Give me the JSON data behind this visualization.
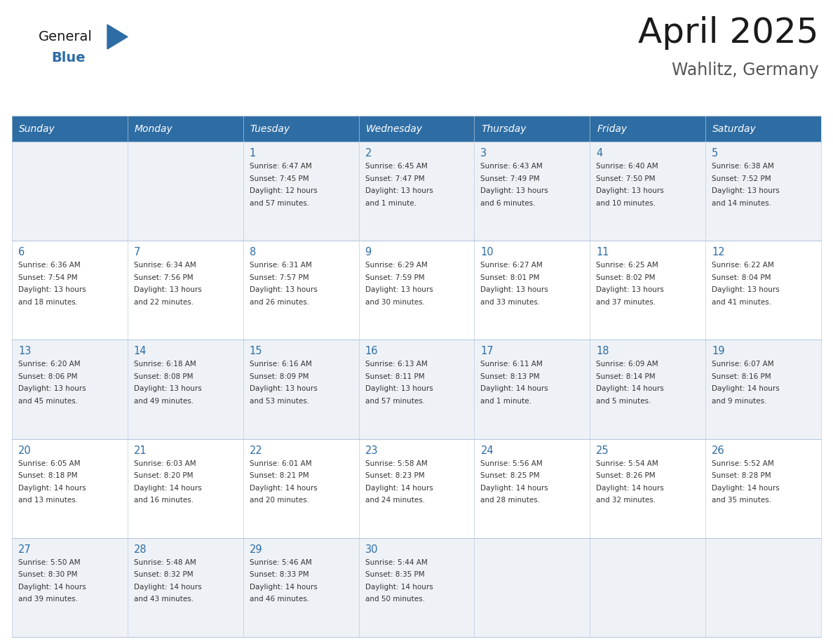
{
  "title": "April 2025",
  "subtitle": "Wahlitz, Germany",
  "header_color": "#2e6da4",
  "header_text_color": "#ffffff",
  "row_bg_even": "#eef2f7",
  "row_bg_odd": "#ffffff",
  "title_color": "#1a1a1a",
  "subtitle_color": "#555555",
  "day_number_color": "#2e6da4",
  "cell_text_color": "#333333",
  "grid_line_color": "#b8c9dc",
  "logo_general_color": "#1a1a1a",
  "logo_blue_color": "#2e6da4",
  "logo_triangle_color": "#2e6da4",
  "days_of_week": [
    "Sunday",
    "Monday",
    "Tuesday",
    "Wednesday",
    "Thursday",
    "Friday",
    "Saturday"
  ],
  "weeks": [
    [
      {
        "day": "",
        "sunrise": "",
        "sunset": "",
        "daylight": ""
      },
      {
        "day": "",
        "sunrise": "",
        "sunset": "",
        "daylight": ""
      },
      {
        "day": "1",
        "sunrise": "Sunrise: 6:47 AM",
        "sunset": "Sunset: 7:45 PM",
        "daylight": "Daylight: 12 hours\nand 57 minutes."
      },
      {
        "day": "2",
        "sunrise": "Sunrise: 6:45 AM",
        "sunset": "Sunset: 7:47 PM",
        "daylight": "Daylight: 13 hours\nand 1 minute."
      },
      {
        "day": "3",
        "sunrise": "Sunrise: 6:43 AM",
        "sunset": "Sunset: 7:49 PM",
        "daylight": "Daylight: 13 hours\nand 6 minutes."
      },
      {
        "day": "4",
        "sunrise": "Sunrise: 6:40 AM",
        "sunset": "Sunset: 7:50 PM",
        "daylight": "Daylight: 13 hours\nand 10 minutes."
      },
      {
        "day": "5",
        "sunrise": "Sunrise: 6:38 AM",
        "sunset": "Sunset: 7:52 PM",
        "daylight": "Daylight: 13 hours\nand 14 minutes."
      }
    ],
    [
      {
        "day": "6",
        "sunrise": "Sunrise: 6:36 AM",
        "sunset": "Sunset: 7:54 PM",
        "daylight": "Daylight: 13 hours\nand 18 minutes."
      },
      {
        "day": "7",
        "sunrise": "Sunrise: 6:34 AM",
        "sunset": "Sunset: 7:56 PM",
        "daylight": "Daylight: 13 hours\nand 22 minutes."
      },
      {
        "day": "8",
        "sunrise": "Sunrise: 6:31 AM",
        "sunset": "Sunset: 7:57 PM",
        "daylight": "Daylight: 13 hours\nand 26 minutes."
      },
      {
        "day": "9",
        "sunrise": "Sunrise: 6:29 AM",
        "sunset": "Sunset: 7:59 PM",
        "daylight": "Daylight: 13 hours\nand 30 minutes."
      },
      {
        "day": "10",
        "sunrise": "Sunrise: 6:27 AM",
        "sunset": "Sunset: 8:01 PM",
        "daylight": "Daylight: 13 hours\nand 33 minutes."
      },
      {
        "day": "11",
        "sunrise": "Sunrise: 6:25 AM",
        "sunset": "Sunset: 8:02 PM",
        "daylight": "Daylight: 13 hours\nand 37 minutes."
      },
      {
        "day": "12",
        "sunrise": "Sunrise: 6:22 AM",
        "sunset": "Sunset: 8:04 PM",
        "daylight": "Daylight: 13 hours\nand 41 minutes."
      }
    ],
    [
      {
        "day": "13",
        "sunrise": "Sunrise: 6:20 AM",
        "sunset": "Sunset: 8:06 PM",
        "daylight": "Daylight: 13 hours\nand 45 minutes."
      },
      {
        "day": "14",
        "sunrise": "Sunrise: 6:18 AM",
        "sunset": "Sunset: 8:08 PM",
        "daylight": "Daylight: 13 hours\nand 49 minutes."
      },
      {
        "day": "15",
        "sunrise": "Sunrise: 6:16 AM",
        "sunset": "Sunset: 8:09 PM",
        "daylight": "Daylight: 13 hours\nand 53 minutes."
      },
      {
        "day": "16",
        "sunrise": "Sunrise: 6:13 AM",
        "sunset": "Sunset: 8:11 PM",
        "daylight": "Daylight: 13 hours\nand 57 minutes."
      },
      {
        "day": "17",
        "sunrise": "Sunrise: 6:11 AM",
        "sunset": "Sunset: 8:13 PM",
        "daylight": "Daylight: 14 hours\nand 1 minute."
      },
      {
        "day": "18",
        "sunrise": "Sunrise: 6:09 AM",
        "sunset": "Sunset: 8:14 PM",
        "daylight": "Daylight: 14 hours\nand 5 minutes."
      },
      {
        "day": "19",
        "sunrise": "Sunrise: 6:07 AM",
        "sunset": "Sunset: 8:16 PM",
        "daylight": "Daylight: 14 hours\nand 9 minutes."
      }
    ],
    [
      {
        "day": "20",
        "sunrise": "Sunrise: 6:05 AM",
        "sunset": "Sunset: 8:18 PM",
        "daylight": "Daylight: 14 hours\nand 13 minutes."
      },
      {
        "day": "21",
        "sunrise": "Sunrise: 6:03 AM",
        "sunset": "Sunset: 8:20 PM",
        "daylight": "Daylight: 14 hours\nand 16 minutes."
      },
      {
        "day": "22",
        "sunrise": "Sunrise: 6:01 AM",
        "sunset": "Sunset: 8:21 PM",
        "daylight": "Daylight: 14 hours\nand 20 minutes."
      },
      {
        "day": "23",
        "sunrise": "Sunrise: 5:58 AM",
        "sunset": "Sunset: 8:23 PM",
        "daylight": "Daylight: 14 hours\nand 24 minutes."
      },
      {
        "day": "24",
        "sunrise": "Sunrise: 5:56 AM",
        "sunset": "Sunset: 8:25 PM",
        "daylight": "Daylight: 14 hours\nand 28 minutes."
      },
      {
        "day": "25",
        "sunrise": "Sunrise: 5:54 AM",
        "sunset": "Sunset: 8:26 PM",
        "daylight": "Daylight: 14 hours\nand 32 minutes."
      },
      {
        "day": "26",
        "sunrise": "Sunrise: 5:52 AM",
        "sunset": "Sunset: 8:28 PM",
        "daylight": "Daylight: 14 hours\nand 35 minutes."
      }
    ],
    [
      {
        "day": "27",
        "sunrise": "Sunrise: 5:50 AM",
        "sunset": "Sunset: 8:30 PM",
        "daylight": "Daylight: 14 hours\nand 39 minutes."
      },
      {
        "day": "28",
        "sunrise": "Sunrise: 5:48 AM",
        "sunset": "Sunset: 8:32 PM",
        "daylight": "Daylight: 14 hours\nand 43 minutes."
      },
      {
        "day": "29",
        "sunrise": "Sunrise: 5:46 AM",
        "sunset": "Sunset: 8:33 PM",
        "daylight": "Daylight: 14 hours\nand 46 minutes."
      },
      {
        "day": "30",
        "sunrise": "Sunrise: 5:44 AM",
        "sunset": "Sunset: 8:35 PM",
        "daylight": "Daylight: 14 hours\nand 50 minutes."
      },
      {
        "day": "",
        "sunrise": "",
        "sunset": "",
        "daylight": ""
      },
      {
        "day": "",
        "sunrise": "",
        "sunset": "",
        "daylight": ""
      },
      {
        "day": "",
        "sunrise": "",
        "sunset": "",
        "daylight": ""
      }
    ]
  ]
}
